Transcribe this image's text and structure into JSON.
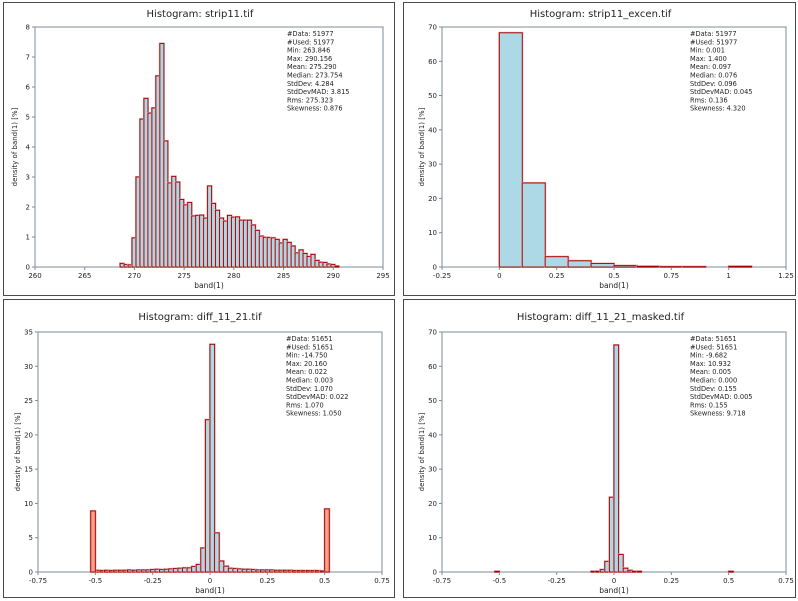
{
  "chart_data": [
    {
      "type": "bar",
      "title": "Histogram: strip11.tif",
      "xlabel": "band(1)",
      "ylabel": "density of band(1) [%]",
      "xlim": [
        260,
        295
      ],
      "ylim": [
        0,
        8
      ],
      "xticks": [
        260,
        265,
        270,
        275,
        280,
        285,
        290,
        295
      ],
      "xtick_labels": [
        "260",
        "265",
        "270",
        "275",
        "280",
        "285",
        "290",
        "295"
      ],
      "yticks": [
        0,
        1,
        2,
        3,
        4,
        5,
        6,
        7,
        8
      ],
      "ytick_labels": [
        "0",
        "1",
        "2",
        "3",
        "4",
        "5",
        "6",
        "7",
        "8"
      ],
      "bin_start": 268.56,
      "bin_width": 0.4,
      "values": [
        0.12,
        0.08,
        0.07,
        0.97,
        3.0,
        4.93,
        5.62,
        5.13,
        5.3,
        6.37,
        7.45,
        4.2,
        2.8,
        3.02,
        2.83,
        2.25,
        2.07,
        2.15,
        1.7,
        1.72,
        1.73,
        1.63,
        2.7,
        2.12,
        1.89,
        1.63,
        1.53,
        1.72,
        1.66,
        1.67,
        1.56,
        1.56,
        1.56,
        1.4,
        1.22,
        1.03,
        0.99,
        0.98,
        0.97,
        0.92,
        0.8,
        0.92,
        0.82,
        0.7,
        0.47,
        0.57,
        0.45,
        0.35,
        0.42,
        0.22,
        0.16,
        0.15,
        0.1,
        0.08,
        0.03
      ],
      "overflow_bins": [],
      "stats": [
        "#Data: 51977",
        "#Used: 51977",
        "Min: 263.846",
        "Max: 290.156",
        "Mean: 275.290",
        "Median: 273.754",
        "StdDev: 4.284",
        "StdDevMAD: 3.815",
        "Rms: 275.323",
        "Skewness: 0.876"
      ]
    },
    {
      "type": "bar",
      "title": "Histogram: strip11_excen.tif",
      "xlabel": "band(1)",
      "ylabel": "density of band(1) [%]",
      "xlim": [
        -0.25,
        1.25
      ],
      "ylim": [
        0,
        70
      ],
      "xticks": [
        -0.25,
        0,
        0.25,
        0.5,
        0.75,
        1,
        1.25
      ],
      "xtick_labels": [
        "-0.25",
        "0",
        "0.25",
        "0.5",
        "0.75",
        "1",
        "1.25"
      ],
      "yticks": [
        0,
        10,
        20,
        30,
        40,
        50,
        60,
        70
      ],
      "ytick_labels": [
        "0",
        "10",
        "20",
        "30",
        "40",
        "50",
        "60",
        "70"
      ],
      "bin_start": 0,
      "bin_width": 0.1,
      "values": [
        68.3,
        24.5,
        3.0,
        1.8,
        1.0,
        0.4,
        0.2,
        0.1,
        0.1,
        0.0,
        0.2
      ],
      "overflow_bins": [],
      "stats": [
        "#Data: 51977",
        "#Used: 51977",
        "Min: 0.001",
        "Max: 1.400",
        "Mean: 0.097",
        "Median: 0.076",
        "StdDev: 0.096",
        "StdDevMAD: 0.045",
        "Rms: 0.136",
        "Skewness: 4.320"
      ]
    },
    {
      "type": "bar",
      "title": "Histogram: diff_11_21.tif",
      "xlabel": "band(1)",
      "ylabel": "density of band(1) [%]",
      "xlim": [
        -0.75,
        0.75
      ],
      "ylim": [
        0,
        35
      ],
      "xticks": [
        -0.75,
        -0.5,
        -0.25,
        0,
        0.25,
        0.5,
        0.75
      ],
      "xtick_labels": [
        "-0.75",
        "-0.5",
        "-0.25",
        "0",
        "0.25",
        "0.5",
        "0.75"
      ],
      "yticks": [
        0,
        5,
        10,
        15,
        20,
        25,
        30,
        35
      ],
      "ytick_labels": [
        "0",
        "5",
        "10",
        "15",
        "20",
        "25",
        "30",
        "35"
      ],
      "bin_start": -0.5,
      "bin_width": 0.02,
      "values": [
        0.25,
        0.2,
        0.25,
        0.2,
        0.25,
        0.25,
        0.25,
        0.3,
        0.25,
        0.3,
        0.3,
        0.3,
        0.35,
        0.4,
        0.35,
        0.4,
        0.45,
        0.5,
        0.55,
        0.6,
        0.6,
        0.8,
        1.1,
        3.5,
        22.2,
        33.2,
        5.7,
        1.6,
        0.85,
        0.55,
        0.5,
        0.45,
        0.4,
        0.4,
        0.35,
        0.3,
        0.3,
        0.3,
        0.3,
        0.25,
        0.25,
        0.25,
        0.25,
        0.2,
        0.2,
        0.2,
        0.2,
        0.2,
        0.2,
        0.15
      ],
      "overflow_bins": [
        {
          "x": -0.52,
          "value": 8.9
        },
        {
          "x": 0.5,
          "value": 9.2
        }
      ],
      "stats": [
        "#Data: 51651",
        "#Used: 51651",
        "Min: -14.750",
        "Max: 20.160",
        "Mean: 0.022",
        "Median: 0.003",
        "StdDev: 1.070",
        "StdDevMAD: 0.022",
        "Rms: 1.070",
        "Skewness: 1.050"
      ]
    },
    {
      "type": "bar",
      "title": "Histogram: diff_11_21_masked.tif",
      "xlabel": "band(1)",
      "ylabel": "density of band(1) [%]",
      "xlim": [
        -0.75,
        0.75
      ],
      "ylim": [
        0,
        70
      ],
      "xticks": [
        -0.75,
        -0.5,
        -0.25,
        0,
        0.25,
        0.5,
        0.75
      ],
      "xtick_labels": [
        "-0.75",
        "-0.5",
        "-0.25",
        "0",
        "0.25",
        "0.5",
        "0.75"
      ],
      "yticks": [
        0,
        10,
        20,
        30,
        40,
        50,
        60,
        70
      ],
      "ytick_labels": [
        "0",
        "10",
        "20",
        "30",
        "40",
        "50",
        "60",
        "70"
      ],
      "bin_start": -0.1,
      "bin_width": 0.02,
      "values": [
        0.2,
        0.2,
        0.7,
        3.1,
        21.8,
        66.2,
        5.1,
        1.1,
        0.5,
        0.2,
        0.2
      ],
      "overflow_bins": [
        {
          "x": -0.52,
          "value": 0.2
        },
        {
          "x": 0.5,
          "value": 0.2
        }
      ],
      "stats": [
        "#Data: 51651",
        "#Used: 51651",
        "Min: -9.682",
        "Max: 10.932",
        "Mean: 0.005",
        "Median: 0.000",
        "StdDev: 0.155",
        "StdDevMAD: 0.005",
        "Rms: 0.155",
        "Skewness: 9.718"
      ]
    }
  ],
  "colors": {
    "bar_fill": "#add8e6",
    "bar_stroke": "#a00000",
    "bar_halo": "#e8a0a0",
    "overflow_fill": "#f4a08a",
    "axis": "#7d8c99"
  }
}
